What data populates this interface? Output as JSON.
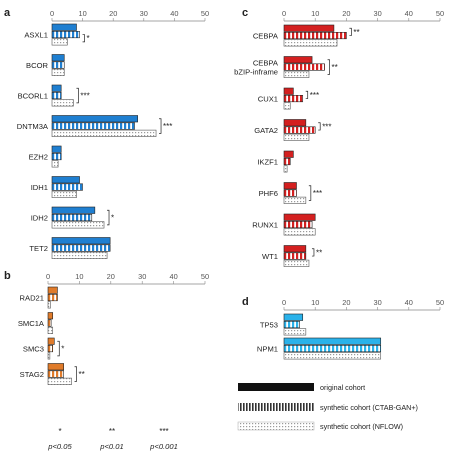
{
  "colors": {
    "blue": "#1f7fd1",
    "orange": "#e07b2a",
    "red": "#d42020",
    "cyan": "#2ab2ea",
    "legend": "#333333"
  },
  "chart_data": [
    {
      "panel": "a",
      "type": "bar",
      "orientation": "horizontal",
      "xlim": [
        0,
        50
      ],
      "xticks": [
        "0",
        "10",
        "20",
        "30",
        "40",
        "50"
      ],
      "series": [
        {
          "name": "original cohort"
        },
        {
          "name": "synthetic cohort (CTAB-GAN+)"
        },
        {
          "name": "synthetic cohort (NFLOW)"
        }
      ],
      "categories": [
        {
          "label": "ASXL1",
          "values": [
            8,
            9,
            5
          ],
          "sig": "*",
          "sig_pair": [
            1,
            2
          ]
        },
        {
          "label": "BCOR",
          "values": [
            4,
            4,
            4
          ],
          "sig": "",
          "sig_pair": []
        },
        {
          "label": "BCORL1",
          "values": [
            3,
            3,
            7
          ],
          "sig": "***",
          "sig_pair": [
            0,
            2
          ]
        },
        {
          "label": "DNTM3A",
          "values": [
            28,
            27,
            34
          ],
          "sig": "***",
          "sig_pair": [
            0,
            2
          ]
        },
        {
          "label": "EZH2",
          "values": [
            3,
            3,
            2
          ],
          "sig": "",
          "sig_pair": []
        },
        {
          "label": "IDH1",
          "values": [
            9,
            10,
            8
          ],
          "sig": "",
          "sig_pair": []
        },
        {
          "label": "IDH2",
          "values": [
            14,
            13,
            17
          ],
          "sig": "*",
          "sig_pair": [
            0,
            2
          ]
        },
        {
          "label": "TET2",
          "values": [
            19,
            19,
            18
          ],
          "sig": "",
          "sig_pair": []
        }
      ]
    },
    {
      "panel": "b",
      "type": "bar",
      "orientation": "horizontal",
      "xlim": [
        0,
        50
      ],
      "xticks": [
        "0",
        "10",
        "20",
        "30",
        "40",
        "50"
      ],
      "categories": [
        {
          "label": "RAD21",
          "values": [
            3,
            3,
            0.8
          ],
          "sig": "",
          "sig_pair": []
        },
        {
          "label": "SMC1A",
          "values": [
            1.5,
            1,
            1.5
          ],
          "sig": "",
          "sig_pair": []
        },
        {
          "label": "SMC3",
          "values": [
            2,
            1.5,
            0.6
          ],
          "sig": "*",
          "sig_pair": [
            0,
            2
          ]
        },
        {
          "label": "STAG2",
          "values": [
            5,
            5,
            7.5
          ],
          "sig": "**",
          "sig_pair": [
            0,
            2
          ]
        }
      ]
    },
    {
      "panel": "c",
      "type": "bar",
      "orientation": "horizontal",
      "xlim": [
        0,
        50
      ],
      "xticks": [
        "0",
        "10",
        "20",
        "30",
        "40",
        "50"
      ],
      "categories": [
        {
          "label": "CEBPA",
          "values": [
            16,
            20,
            17
          ],
          "sig": "**",
          "sig_pair": [
            0,
            1
          ]
        },
        {
          "label": "CEBPA\nbZIP-inframe",
          "values": [
            9,
            13,
            8
          ],
          "sig": "**",
          "sig_pair": [
            0,
            2
          ]
        },
        {
          "label": "CUX1",
          "values": [
            3,
            6,
            2
          ],
          "sig": "***",
          "sig_pair": [
            0,
            1
          ]
        },
        {
          "label": "GATA2",
          "values": [
            7,
            10,
            8
          ],
          "sig": "***",
          "sig_pair": [
            0,
            1
          ]
        },
        {
          "label": "IKZF1",
          "values": [
            3,
            2,
            1
          ],
          "sig": "",
          "sig_pair": []
        },
        {
          "label": "PHF6",
          "values": [
            4,
            4,
            7
          ],
          "sig": "***",
          "sig_pair": [
            0,
            2
          ]
        },
        {
          "label": "RUNX1",
          "values": [
            10,
            9,
            10
          ],
          "sig": "",
          "sig_pair": []
        },
        {
          "label": "WT1",
          "values": [
            7,
            7,
            8
          ],
          "sig": "**",
          "sig_pair": [
            0,
            1
          ]
        }
      ]
    },
    {
      "panel": "d",
      "type": "bar",
      "orientation": "horizontal",
      "xlim": [
        0,
        50
      ],
      "xticks": [
        "0",
        "10",
        "20",
        "30",
        "40",
        "50"
      ],
      "categories": [
        {
          "label": "TP53",
          "values": [
            6,
            5,
            7
          ],
          "sig": "",
          "sig_pair": []
        },
        {
          "label": "NPM1",
          "values": [
            31,
            31,
            31
          ],
          "sig": "",
          "sig_pair": []
        }
      ]
    }
  ],
  "legend": [
    {
      "label": "original cohort",
      "pattern": "solid"
    },
    {
      "label": "synthetic cohort (CTAB-GAN+)",
      "pattern": "vstripes"
    },
    {
      "label": "synthetic cohort (NFLOW)",
      "pattern": "dots"
    }
  ],
  "significance_key": [
    {
      "mark": "*",
      "label": "p<0.05"
    },
    {
      "mark": "**",
      "label": "p<0.01"
    },
    {
      "mark": "***",
      "label": "p<0.001"
    }
  ]
}
